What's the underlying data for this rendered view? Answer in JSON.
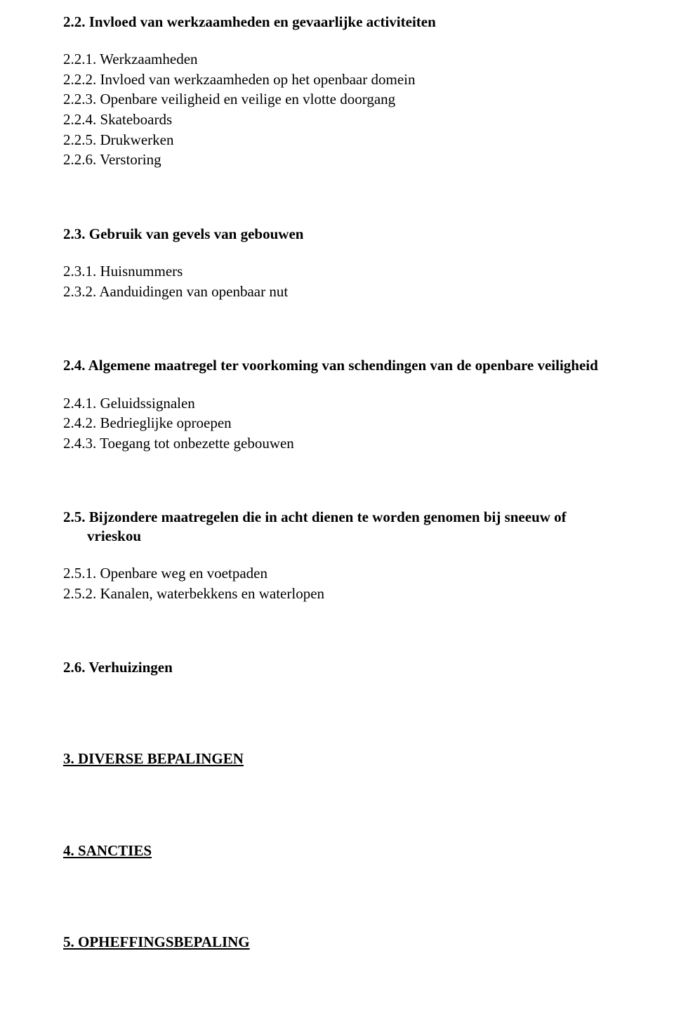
{
  "colors": {
    "text": "#000000",
    "background": "#ffffff"
  },
  "typography": {
    "family": "Times New Roman",
    "body_size_pt": 16,
    "heading_weight": "bold"
  },
  "s22": {
    "title": "2.2. Invloed van werkzaamheden en gevaarlijke activiteiten",
    "items": [
      "2.2.1. Werkzaamheden",
      "2.2.2. Invloed van werkzaamheden op het openbaar domein",
      "2.2.3. Openbare veiligheid en veilige en vlotte doorgang",
      "2.2.4. Skateboards",
      "2.2.5. Drukwerken",
      "2.2.6. Verstoring"
    ]
  },
  "s23": {
    "title": "2.3. Gebruik van gevels van gebouwen",
    "items": [
      "2.3.1. Huisnummers",
      "2.3.2. Aanduidingen van openbaar nut"
    ]
  },
  "s24": {
    "title": "2.4. Algemene maatregel ter voorkoming van schendingen van de openbare veiligheid",
    "items": [
      "2.4.1. Geluidssignalen",
      "2.4.2. Bedrieglijke oproepen",
      "2.4.3. Toegang tot onbezette gebouwen"
    ]
  },
  "s25": {
    "title": "2.5. Bijzondere maatregelen die in acht dienen te worden genomen bij sneeuw of vrieskou",
    "items": [
      "2.5.1. Openbare weg en voetpaden",
      "2.5.2. Kanalen, waterbekkens en waterlopen"
    ]
  },
  "s26": {
    "title": "2.6. Verhuizingen"
  },
  "s3": {
    "title": "3. DIVERSE BEPALINGEN"
  },
  "s4": {
    "title": "4. SANCTIES"
  },
  "s5": {
    "title": "5. OPHEFFINGSBEPALING"
  }
}
